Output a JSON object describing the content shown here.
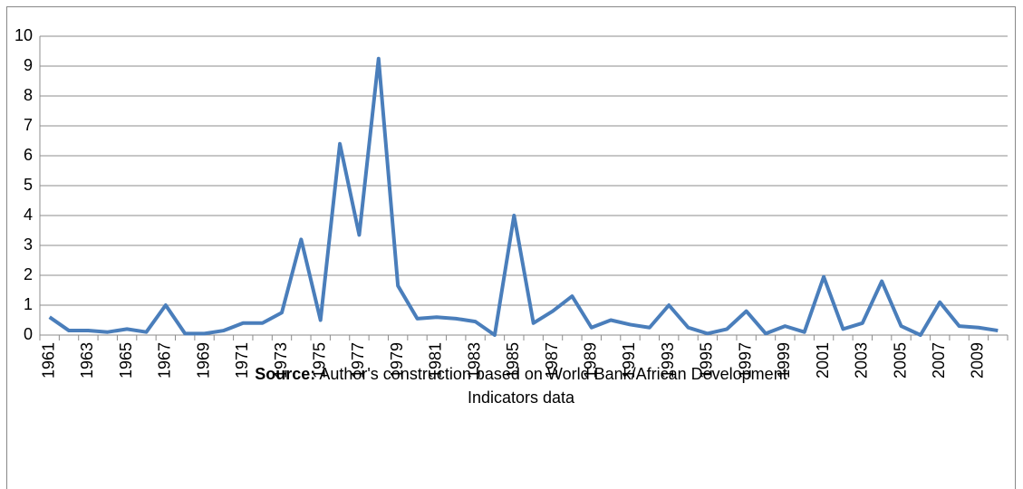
{
  "chart_data": {
    "type": "line",
    "categories": [
      "1961",
      null,
      "1963",
      null,
      "1965",
      null,
      "1967",
      null,
      "1969",
      null,
      "1971",
      null,
      "1973",
      null,
      "1975",
      null,
      "1977",
      null,
      "1979",
      null,
      "1981",
      null,
      "1983",
      null,
      "1985",
      null,
      "1987",
      null,
      "1989",
      null,
      "1991",
      null,
      "1993",
      null,
      "1995",
      null,
      "1997",
      null,
      "1999",
      null,
      "2001",
      null,
      "2003",
      null,
      "2005",
      null,
      "2007",
      null,
      "2009",
      null
    ],
    "series": [
      {
        "color": "#4a7ebb",
        "values": [
          0.6,
          0.15,
          0.15,
          0.1,
          0.2,
          0.1,
          1.0,
          0.05,
          0.05,
          0.15,
          0.4,
          0.4,
          0.75,
          3.2,
          0.5,
          6.4,
          3.35,
          9.25,
          1.65,
          0.55,
          0.6,
          0.55,
          0.45,
          0.0,
          4.0,
          0.4,
          0.8,
          1.3,
          0.25,
          0.5,
          0.35,
          0.25,
          1.0,
          0.25,
          0.05,
          0.2,
          0.8,
          0.05,
          0.3,
          0.1,
          1.95,
          0.2,
          0.4,
          1.8,
          0.3,
          0.0,
          1.1,
          0.3,
          0.25,
          0.15
        ]
      }
    ],
    "ylim": [
      0,
      10
    ],
    "yticks": [
      0,
      1,
      2,
      3,
      4,
      5,
      6,
      7,
      8,
      9,
      10
    ],
    "grid": true,
    "source_label": "Source:",
    "source_text": "Author's construction based on World Bank/African Development Indicators data"
  }
}
